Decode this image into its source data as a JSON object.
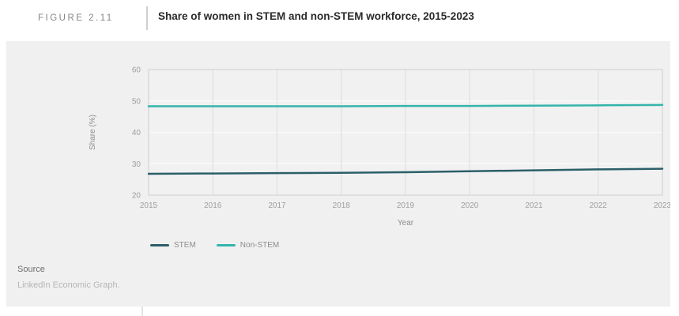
{
  "page": {
    "figure_label": "FIGURE 2.11",
    "title": "Share of women in STEM and non-STEM workforce, 2015-2023"
  },
  "source": {
    "label": "Source",
    "text": "LinkedIn Economic Graph."
  },
  "colors": {
    "stem_line": "#2b5f68",
    "non_stem_line": "#34b4ab",
    "card_background": "#f0f0f0",
    "plot_border": "#d9d9d9",
    "vertical_grid": "#e3e3e3",
    "horizontal_grid": "#fafafa",
    "tick_text": "#9e9e9e"
  },
  "chart_data": {
    "type": "line",
    "title": "Share of women in STEM and non-STEM workforce, 2015-2023",
    "xlabel": "Year",
    "ylabel": "Share (%)",
    "x": [
      2015,
      2016,
      2017,
      2018,
      2019,
      2020,
      2021,
      2022,
      2023
    ],
    "series": [
      {
        "name": "STEM",
        "color": "#2b5f68",
        "values": [
          26.8,
          26.9,
          27.0,
          27.1,
          27.3,
          27.6,
          27.9,
          28.2,
          28.4
        ]
      },
      {
        "name": "Non-STEM",
        "color": "#34b4ab",
        "values": [
          48.3,
          48.3,
          48.3,
          48.3,
          48.4,
          48.4,
          48.5,
          48.6,
          48.7
        ]
      }
    ],
    "ylim": [
      20,
      60
    ],
    "yticks": [
      20,
      30,
      40,
      50,
      60
    ],
    "grid": true,
    "legend_position": "bottom-left"
  }
}
